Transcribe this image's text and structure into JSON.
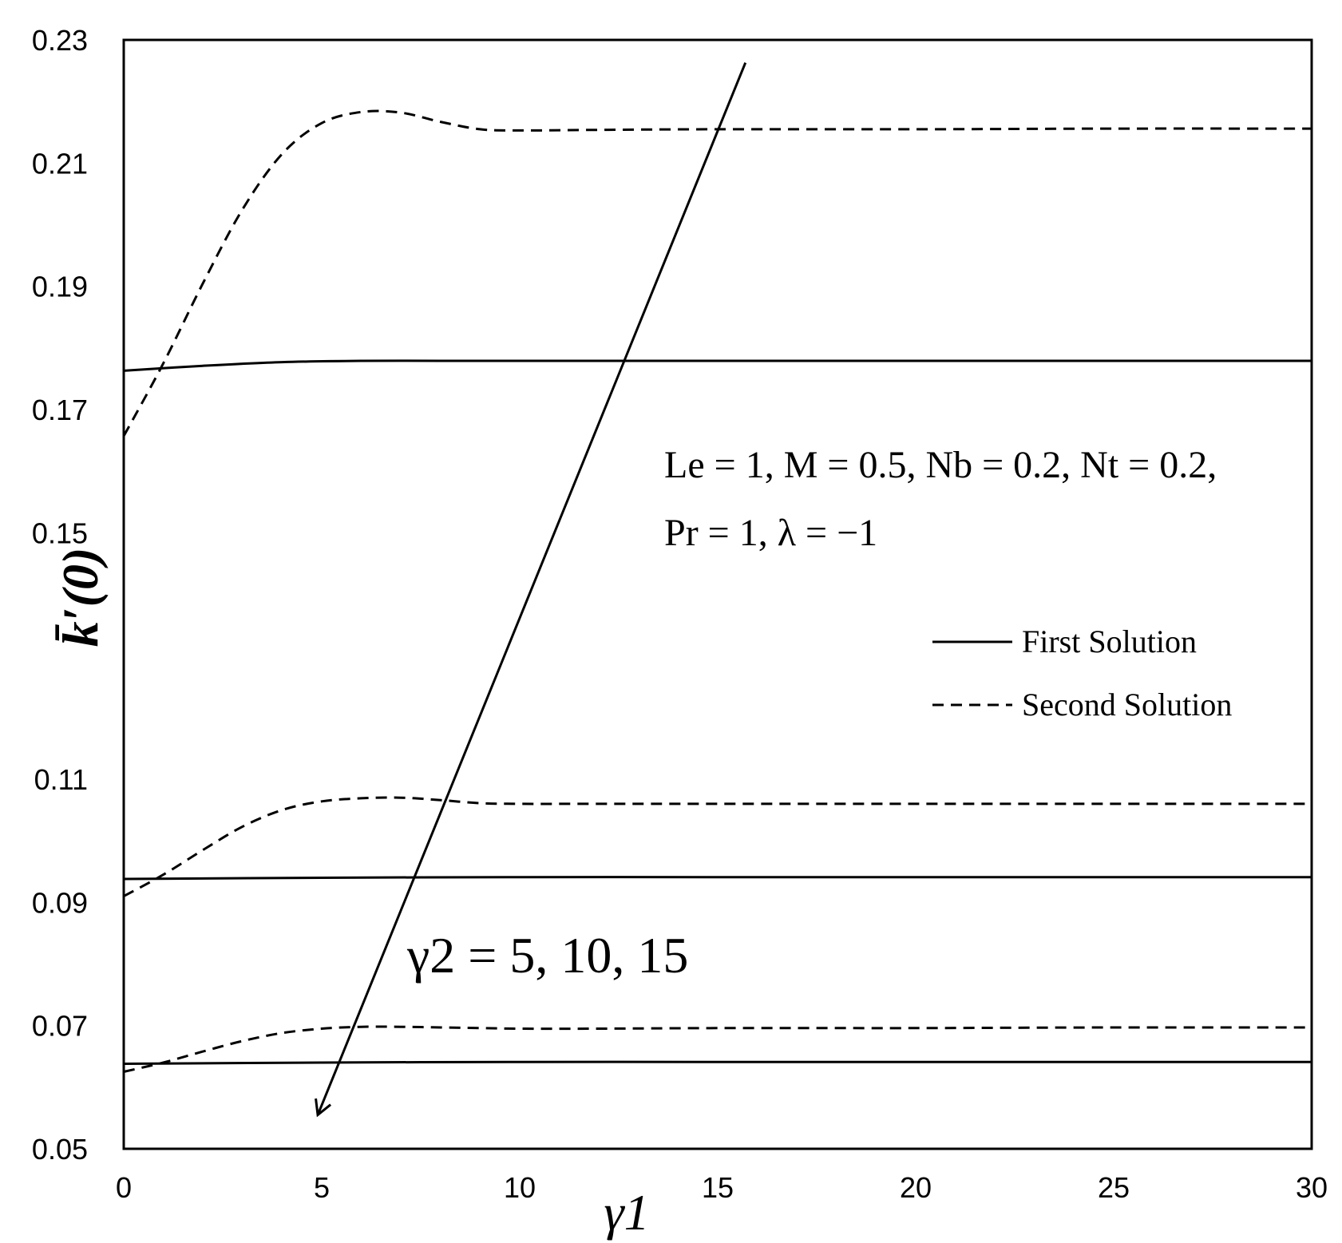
{
  "chart_data": {
    "type": "line",
    "title": "",
    "xlabel": "γ1",
    "ylabel": "k̄′(0)",
    "xlim": [
      0,
      30
    ],
    "ylim": [
      0.05,
      0.23
    ],
    "xticks": [
      0,
      5,
      10,
      15,
      20,
      25,
      30
    ],
    "xtick_labels": [
      "0",
      "5",
      "10",
      "15",
      "20",
      "25",
      "30"
    ],
    "yticks": [
      0.05,
      0.07,
      0.09,
      0.11,
      0.15,
      0.17,
      0.19,
      0.21,
      0.23
    ],
    "ytick_labels": [
      "0.05",
      "0.07",
      "0.09",
      "0.11",
      "0.15",
      "0.17",
      "0.19",
      "0.21",
      "0.23"
    ],
    "grid": false,
    "legend": {
      "placement": "right",
      "entries": [
        {
          "label": "First Solution",
          "style": "solid"
        },
        {
          "label": "Second Solution",
          "style": "dashed"
        }
      ]
    },
    "series": [
      {
        "style": "solid",
        "group": "γ2 = 5",
        "x": [
          0,
          2,
          4,
          6,
          8,
          10,
          15,
          20,
          25,
          30
        ],
        "y": [
          0.1763,
          0.1771,
          0.1777,
          0.1779,
          0.1779,
          0.1779,
          0.1779,
          0.1779,
          0.1779,
          0.1779
        ]
      },
      {
        "style": "dashed",
        "group": "γ2 = 5",
        "x": [
          0,
          1,
          2,
          3,
          4,
          5,
          6,
          7,
          8,
          9,
          10,
          12,
          15,
          20,
          25,
          30
        ],
        "y": [
          0.1657,
          0.1775,
          0.1905,
          0.2025,
          0.2115,
          0.2165,
          0.2183,
          0.2182,
          0.2167,
          0.2155,
          0.2153,
          0.2154,
          0.2155,
          0.2155,
          0.2156,
          0.2156
        ]
      },
      {
        "style": "solid",
        "group": "γ2 = 10",
        "x": [
          0,
          5,
          10,
          15,
          20,
          25,
          30
        ],
        "y": [
          0.0938,
          0.094,
          0.0941,
          0.0941,
          0.0941,
          0.0941,
          0.0941
        ]
      },
      {
        "style": "dashed",
        "group": "γ2 = 10",
        "x": [
          0,
          1,
          2,
          3,
          4,
          5,
          6,
          7,
          8,
          9,
          10,
          12,
          15,
          20,
          25,
          30
        ],
        "y": [
          0.091,
          0.0945,
          0.0985,
          0.1023,
          0.105,
          0.1064,
          0.1069,
          0.107,
          0.1066,
          0.1061,
          0.106,
          0.106,
          0.106,
          0.106,
          0.106,
          0.106
        ]
      },
      {
        "style": "solid",
        "group": "γ2 = 15",
        "x": [
          0,
          5,
          10,
          15,
          20,
          25,
          30
        ],
        "y": [
          0.0638,
          0.064,
          0.0641,
          0.0641,
          0.0641,
          0.0641,
          0.0641
        ]
      },
      {
        "style": "dashed",
        "group": "γ2 = 15",
        "x": [
          0,
          1,
          2,
          3,
          4,
          5,
          6,
          7,
          8,
          9,
          10,
          12,
          15,
          20,
          25,
          30
        ],
        "y": [
          0.0625,
          0.064,
          0.0658,
          0.0675,
          0.0688,
          0.0695,
          0.0698,
          0.0698,
          0.0697,
          0.0696,
          0.0695,
          0.0695,
          0.0696,
          0.0696,
          0.0697,
          0.0697
        ]
      }
    ],
    "annotations": {
      "parameters_line1": "Le = 1,  M = 0.5,  Nb = 0.2,  Nt = 0.2,",
      "parameters_line2": "Pr = 1,  λ = −1",
      "arrow_label": "γ2 = 5,  10,  15",
      "arrow": {
        "from": [
          15.7,
          0.2263
        ],
        "to": [
          4.9,
          0.0555
        ]
      }
    }
  }
}
